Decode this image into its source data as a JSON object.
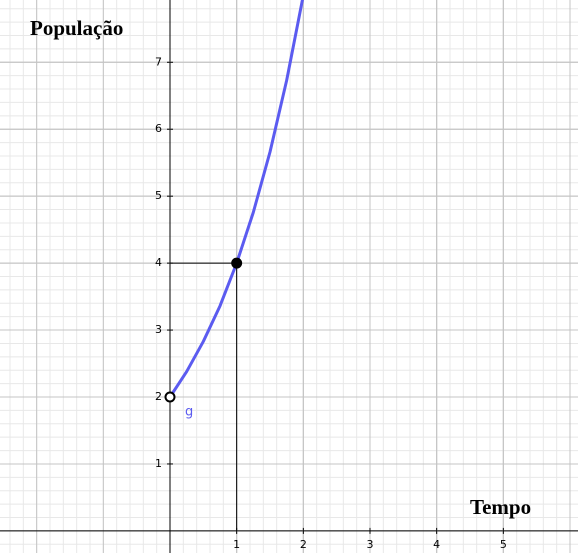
{
  "chart_data": {
    "type": "line",
    "y_label": "População",
    "x_label": "Tempo",
    "x": [
      0,
      0.25,
      0.5,
      0.75,
      1,
      1.25,
      1.5,
      1.75,
      2
    ],
    "series": [
      {
        "name": "g",
        "color": "#5b5bf0",
        "values": [
          2,
          2.38,
          2.83,
          3.36,
          4,
          4.76,
          5.66,
          6.73,
          8
        ]
      }
    ],
    "points": {
      "x": [
        0,
        1
      ],
      "y": [
        2,
        4
      ]
    },
    "xlim": [
      -2.55,
      6.12
    ],
    "ylim": [
      -0.33,
      7.93
    ],
    "xticks": [
      1,
      2,
      3,
      4,
      5
    ],
    "yticks": [
      1,
      2,
      3,
      4,
      5,
      6,
      7
    ],
    "grid": true
  }
}
